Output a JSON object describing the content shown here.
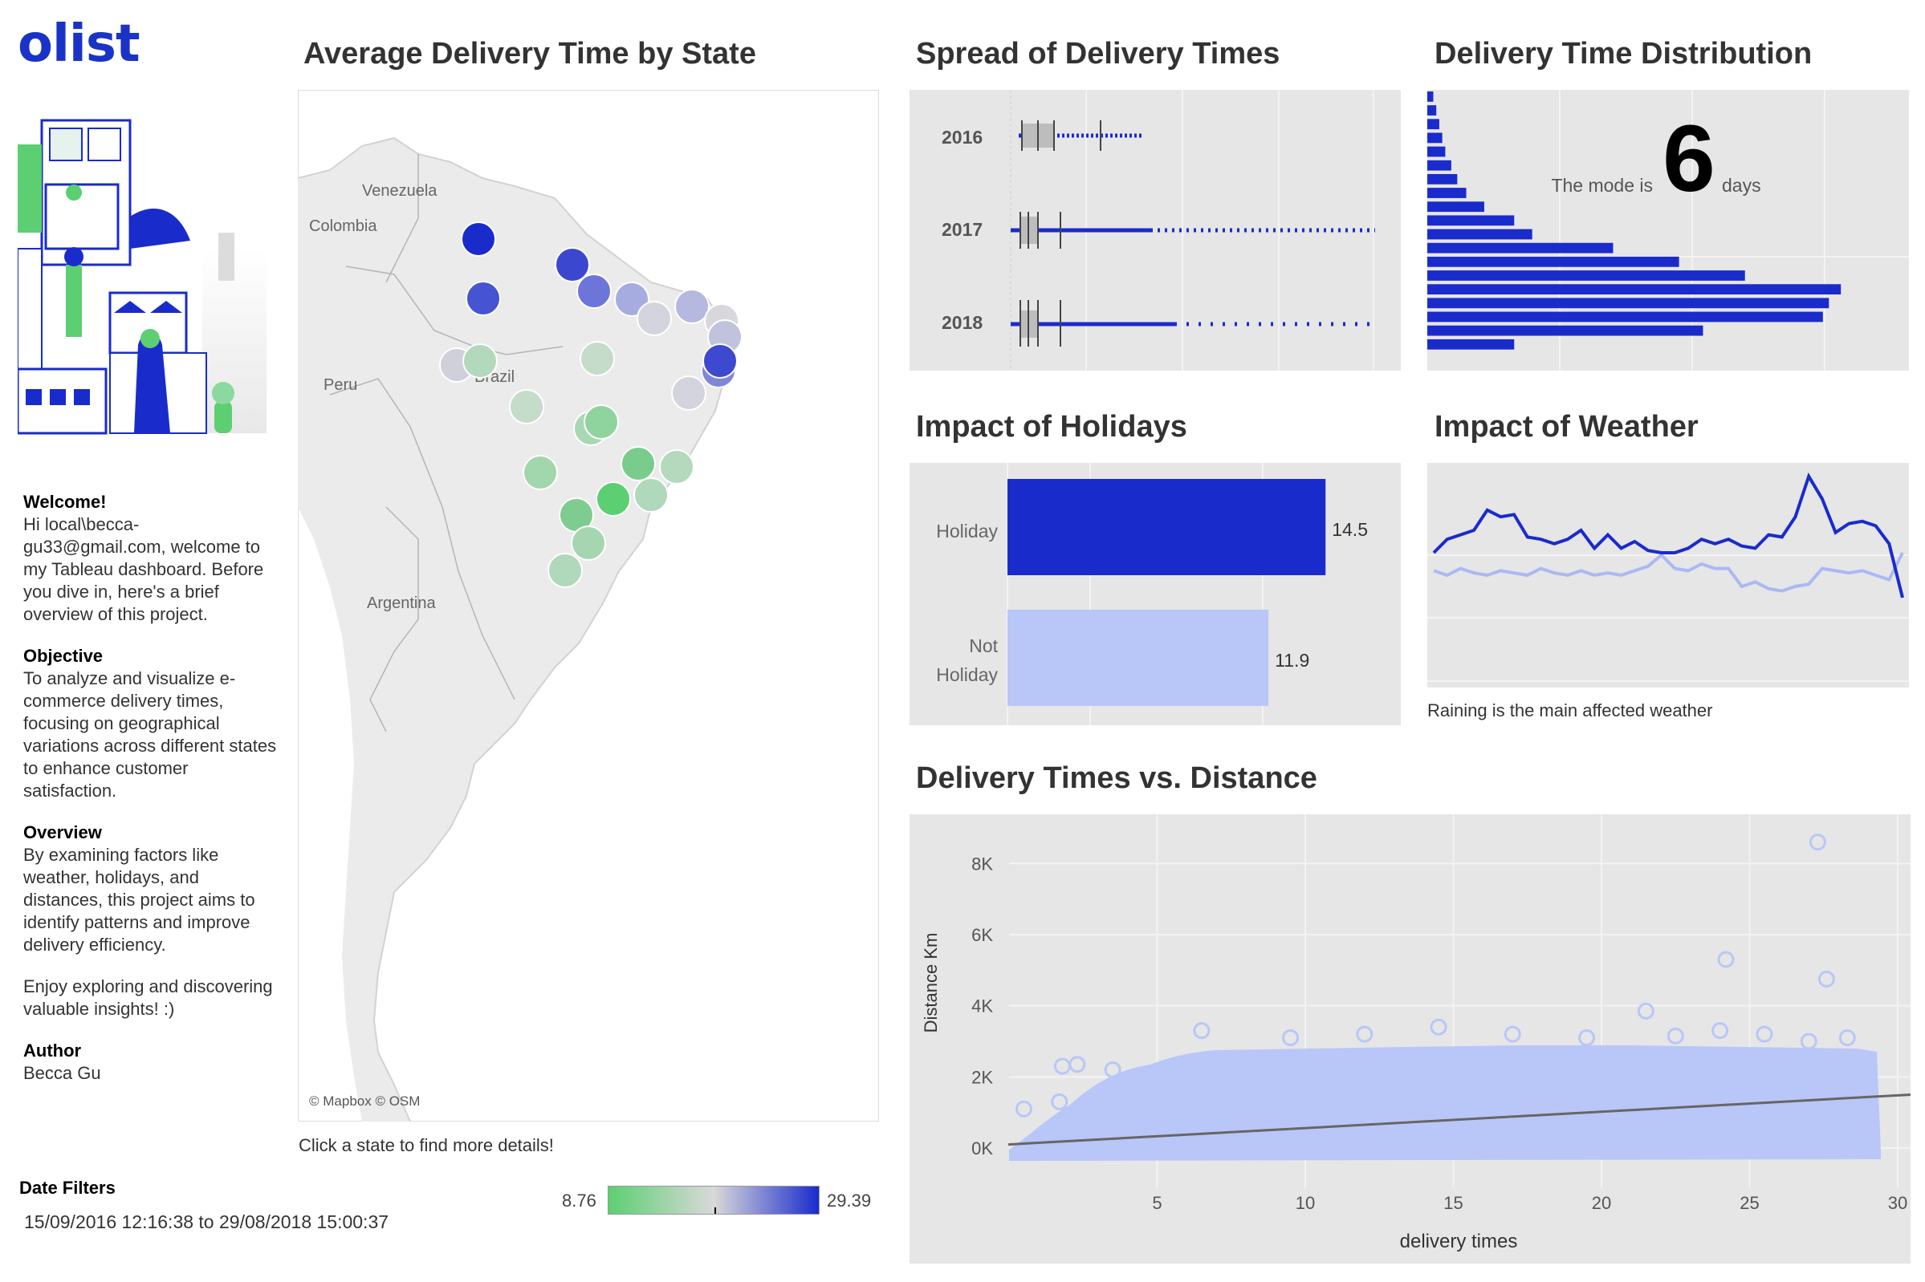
{
  "brand": {
    "logo_text": "olist"
  },
  "sidebar": {
    "welcome_heading": "Welcome!",
    "welcome_text": "Hi local\\becca-gu33@gmail.com, welcome to my Tableau dashboard. Before you dive in, here's a brief overview of this project.",
    "objective_heading": "Objective",
    "objective_text": "To analyze and visualize e-commerce delivery times, focusing on geographical variations across different states to enhance customer satisfaction.",
    "overview_heading": "Overview",
    "overview_text": "By examining factors like weather, holidays, and distances, this project aims to identify patterns and improve delivery efficiency.",
    "enjoy_text": "Enjoy exploring and discovering valuable insights!  :)",
    "author_heading": "Author",
    "author_name": "Becca Gu",
    "date_filters_heading": "Date Filters",
    "date_range": "15/09/2016 12:16:38 to 29/08/2018 15:00:37"
  },
  "map": {
    "title": "Average Delivery Time by State",
    "labels": {
      "venezuela": "Venezuela",
      "colombia": "Colombia",
      "peru": "Peru",
      "brazil": "Brazil",
      "argentina": "Argentina"
    },
    "attribution": "© Mapbox © OSM",
    "instruction": "Click a state to find more details!",
    "legend_min": "8.76",
    "legend_max": "29.39",
    "colors": {
      "low": "#5ccf72",
      "mid": "#d9d9d9",
      "high": "#1a2bcc"
    }
  },
  "spread": {
    "title": "Spread of Delivery Times",
    "years": [
      "2016",
      "2017",
      "2018"
    ]
  },
  "distribution": {
    "title": "Delivery Time Distribution",
    "mode_prefix": "The mode is",
    "mode_value": "6",
    "mode_suffix": "days",
    "bars": [
      2,
      3,
      4,
      5,
      6,
      8,
      10,
      13,
      19,
      29,
      35,
      62,
      84,
      106,
      138,
      134,
      132,
      92,
      29
    ]
  },
  "holidays": {
    "title": "Impact of Holidays",
    "bars": [
      {
        "label": "Holiday",
        "value": 14.5,
        "value_text": "14.5"
      },
      {
        "label_line1": "Not",
        "label_line2": "Holiday",
        "value": 11.9,
        "value_text": "11.9"
      }
    ],
    "colors": {
      "holiday": "#1a2bcc",
      "not_holiday": "#b8c7f7"
    }
  },
  "weather": {
    "title": "Impact of Weather",
    "caption": "Raining is the main affected weather",
    "series_rain": [
      12.0,
      12.6,
      12.8,
      13.0,
      13.9,
      13.6,
      13.7,
      12.7,
      12.6,
      12.4,
      12.6,
      13.0,
      12.2,
      12.8,
      12.2,
      12.5,
      12.1,
      12.0,
      12.0,
      12.2,
      12.6,
      12.4,
      12.6,
      12.3,
      12.2,
      12.8,
      12.7,
      13.6,
      15.4,
      14.4,
      12.9,
      13.3,
      13.4,
      13.2,
      12.4,
      10.0
    ],
    "series_other": [
      11.2,
      11.0,
      11.3,
      11.1,
      11.0,
      11.2,
      11.1,
      11.0,
      11.3,
      11.1,
      11.0,
      11.2,
      11.0,
      11.1,
      11.0,
      11.2,
      11.4,
      11.9,
      11.3,
      11.2,
      11.5,
      11.3,
      11.3,
      10.5,
      10.7,
      10.4,
      10.3,
      10.5,
      10.6,
      11.3,
      11.2,
      11.1,
      11.2,
      11.0,
      10.8,
      12.0
    ],
    "colors": {
      "rain": "#1a2bcc",
      "other": "#aab9f5"
    }
  },
  "scatter": {
    "title": "Delivery Times vs. Distance",
    "xlabel": "delivery times",
    "ylabel": "Distance Km",
    "x_ticks": [
      "5",
      "10",
      "15",
      "20",
      "25",
      "30"
    ],
    "y_ticks": [
      "8K",
      "6K",
      "4K",
      "2K",
      "0K"
    ],
    "trend_start": {
      "x": 0,
      "y": 100
    },
    "trend_end": {
      "x": 30,
      "y": 1400
    },
    "outliers": [
      [
        27.3,
        8600
      ],
      [
        24.2,
        5300
      ],
      [
        27.6,
        4750
      ]
    ]
  },
  "chart_data": [
    {
      "type": "bar",
      "title": "Impact of Holidays",
      "categories": [
        "Holiday",
        "Not Holiday"
      ],
      "values": [
        14.5,
        11.9
      ],
      "orientation": "horizontal"
    },
    {
      "type": "scatter",
      "title": "Delivery Times vs. Distance",
      "xlabel": "delivery times",
      "ylabel": "Distance Km",
      "xlim": [
        0,
        30
      ],
      "ylim": [
        0,
        9000
      ],
      "trend_line": [
        [
          0,
          100
        ],
        [
          30,
          1400
        ]
      ]
    }
  ]
}
